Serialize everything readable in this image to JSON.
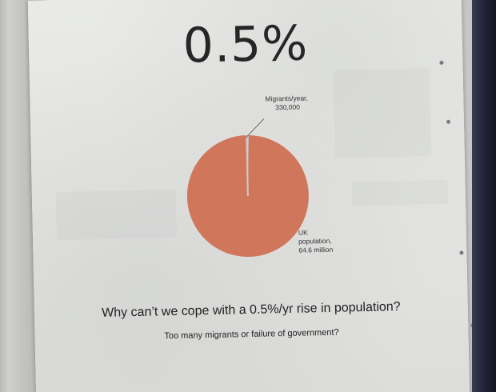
{
  "headline": "0.5%",
  "chart_data": {
    "type": "pie",
    "slices": [
      {
        "label_lines": [
          "Migrants/year,",
          "330,000"
        ],
        "value": 330000
      },
      {
        "label_lines": [
          "UK",
          "population,",
          "64.6 million"
        ],
        "value": 64600000
      }
    ]
  },
  "question": "Why can’t we cope with a 0.5%/yr rise in population?",
  "subquestion": "Too many migrants or failure of government?",
  "colors": {
    "pie_main": "#d0765a",
    "pie_small": "#c9ccd3",
    "leader_line": "#555555"
  }
}
